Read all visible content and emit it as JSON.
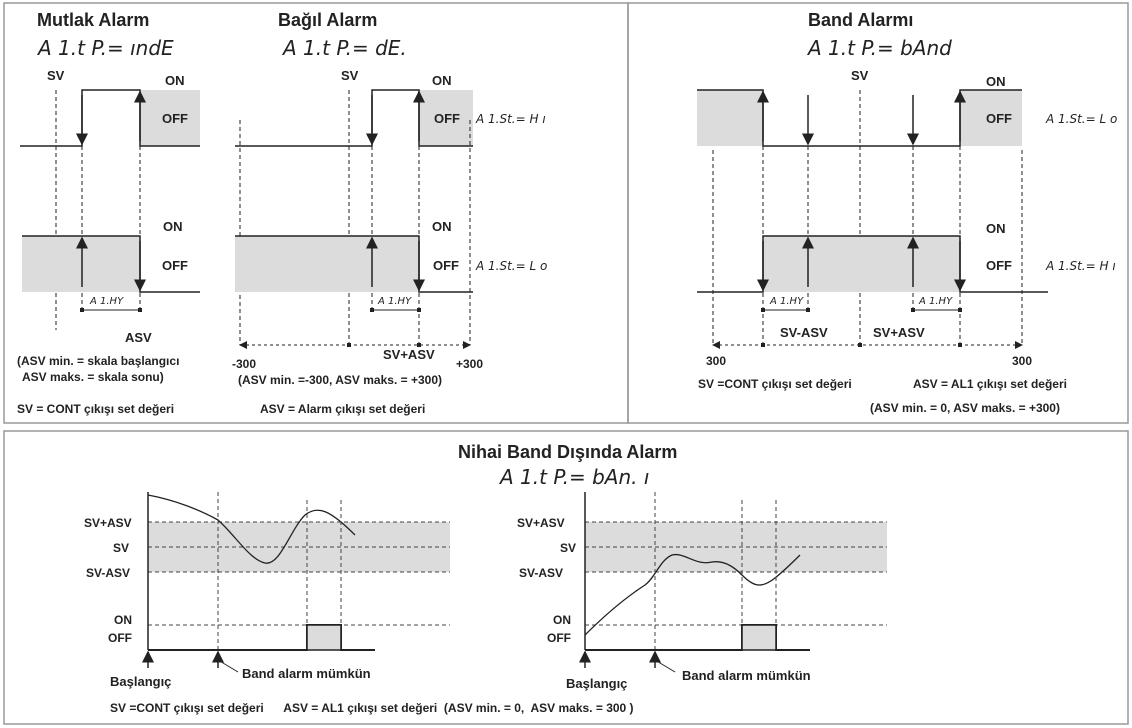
{
  "panel1": {
    "title1": "Mutlak Alarm",
    "code1": "A 1.t P.= ındE",
    "title2": "Bağıl Alarm",
    "code2": "A 1.t P.= dE.",
    "sv": "SV",
    "on": "ON",
    "off": "OFF",
    "asv": "ASV",
    "hys": "A 1.HY",
    "st_hi": "A 1.St.= H ı",
    "st_lo": "A 1.St.= L o",
    "m300": "-300",
    "p300": "+300",
    "sv_asv": "SV+ASV",
    "note1a": "(ASV min.  = skala başlangıcı",
    "note1b": "ASV maks. = skala sonu)",
    "note2": "(ASV min.  =-300, ASV maks. = +300)",
    "legend_sv": "SV    = CONT çıkışı set değeri",
    "legend_asv": "ASV = Alarm çıkışı set değeri"
  },
  "panel2": {
    "title": "Band Alarmı",
    "code": "A 1.t P.= bAnd",
    "sv": "SV",
    "on": "ON",
    "off": "OFF",
    "st_lo": "A 1.St.= L o",
    "st_hi": "A 1.St.= H ı",
    "hys": "A 1.HY",
    "sv_minus": "SV-ASV",
    "sv_plus": "SV+ASV",
    "left300": "300",
    "right300": "300",
    "legend_sv": "SV =CONT çıkışı set değeri",
    "legend_asv": "ASV = AL1 çıkışı set değeri",
    "note": "(ASV min. = 0,  ASV maks. = +300)"
  },
  "panel3": {
    "title": "Nihai Band Dışında Alarm",
    "code": "A 1.t P.= bAn. ı",
    "sv_plus": "SV+ASV",
    "sv": "SV",
    "sv_minus": "SV-ASV",
    "on": "ON",
    "off": "OFF",
    "start": "Başlangıç",
    "enabled": "Band alarm mümkün",
    "legend": "SV =CONT çıkışı set değeri      ASV = AL1 çıkışı set değeri  (ASV min. = 0,  ASV maks. = 300 )"
  },
  "colors": {
    "band": "#dcdcdc",
    "line": "#222222",
    "border": "#999999"
  }
}
